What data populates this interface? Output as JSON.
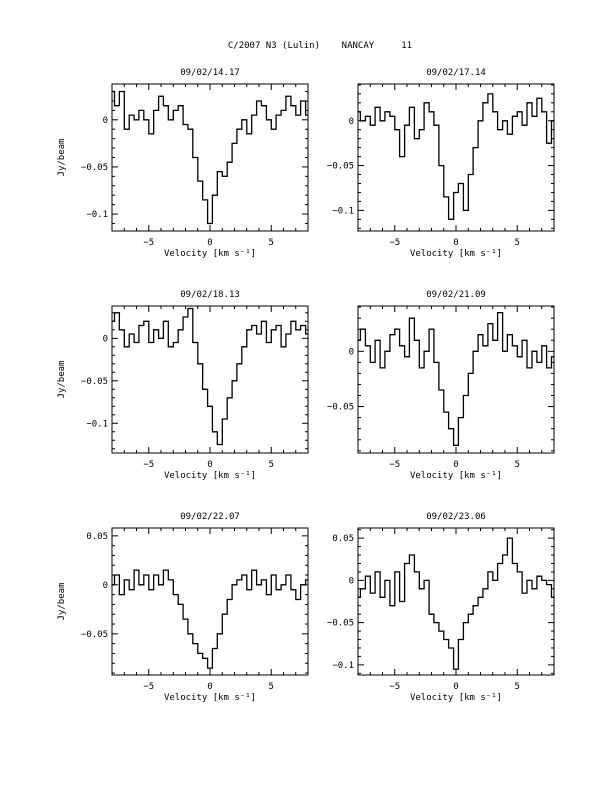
{
  "page_title": "C/2007 N3 (Lulin)    NANCAY     11",
  "chart_data": [
    {
      "type": "line",
      "title": "09/02/14.17",
      "xlabel": "Velocity [km s⁻¹]",
      "ylabel": "Jy/beam",
      "xlim": [
        -8,
        8
      ],
      "ylim": [
        -0.118,
        0.038
      ],
      "xticks": [
        -5,
        0,
        5
      ],
      "yticks": [
        0,
        -0.05,
        -0.1
      ],
      "ytick_labels": [
        "0",
        "−0.05",
        "−0.1"
      ],
      "x": [
        -8.0,
        -7.6,
        -7.2,
        -6.8,
        -6.4,
        -6.0,
        -5.6,
        -5.2,
        -4.8,
        -4.4,
        -4.0,
        -3.6,
        -3.2,
        -2.8,
        -2.4,
        -2.0,
        -1.6,
        -1.2,
        -0.8,
        -0.4,
        0.0,
        0.4,
        0.8,
        1.2,
        1.6,
        2.0,
        2.4,
        2.8,
        3.2,
        3.6,
        4.0,
        4.4,
        4.8,
        5.2,
        5.6,
        6.0,
        6.4,
        6.8,
        7.2,
        7.6,
        8.0
      ],
      "values": [
        0.03,
        0.015,
        0.03,
        -0.01,
        0.005,
        0.0,
        0.01,
        0.0,
        -0.015,
        0.01,
        0.025,
        0.015,
        0.0,
        0.01,
        0.015,
        -0.005,
        -0.01,
        -0.04,
        -0.065,
        -0.085,
        -0.11,
        -0.08,
        -0.055,
        -0.06,
        -0.045,
        -0.025,
        -0.01,
        0.0,
        -0.015,
        0.005,
        0.02,
        0.015,
        0.0,
        -0.01,
        0.005,
        0.01,
        0.025,
        0.015,
        0.005,
        0.02,
        0.005
      ]
    },
    {
      "type": "line",
      "title": "09/02/17.14",
      "xlabel": "Velocity [km s⁻¹]",
      "ylabel": "",
      "xlim": [
        -8,
        8
      ],
      "ylim": [
        -0.123,
        0.041
      ],
      "xticks": [
        -5,
        0,
        5
      ],
      "yticks": [
        0,
        -0.05,
        -0.1
      ],
      "ytick_labels": [
        "0",
        "−0.05",
        "−0.1"
      ],
      "x": [
        -8.0,
        -7.6,
        -7.2,
        -6.8,
        -6.4,
        -6.0,
        -5.6,
        -5.2,
        -4.8,
        -4.4,
        -4.0,
        -3.6,
        -3.2,
        -2.8,
        -2.4,
        -2.0,
        -1.6,
        -1.2,
        -0.8,
        -0.4,
        0.0,
        0.4,
        0.8,
        1.2,
        1.6,
        2.0,
        2.4,
        2.8,
        3.2,
        3.6,
        4.0,
        4.4,
        4.8,
        5.2,
        5.6,
        6.0,
        6.4,
        6.8,
        7.2,
        7.6,
        8.0
      ],
      "values": [
        0.01,
        0.0,
        0.005,
        -0.005,
        0.015,
        0.0,
        0.01,
        0.005,
        -0.01,
        -0.04,
        -0.005,
        0.015,
        -0.02,
        -0.01,
        0.02,
        0.01,
        -0.005,
        -0.05,
        -0.085,
        -0.11,
        -0.08,
        -0.07,
        -0.1,
        -0.06,
        -0.03,
        0.0,
        0.02,
        0.03,
        0.01,
        -0.01,
        0.0,
        -0.015,
        0.005,
        0.01,
        -0.005,
        0.02,
        0.005,
        0.025,
        0.01,
        -0.025,
        0.0
      ]
    },
    {
      "type": "line",
      "title": "09/02/18.13",
      "xlabel": "Velocity [km s⁻¹]",
      "ylabel": "Jy/beam",
      "xlim": [
        -8,
        8
      ],
      "ylim": [
        -0.135,
        0.038
      ],
      "xticks": [
        -5,
        0,
        5
      ],
      "yticks": [
        0,
        -0.05,
        -0.1
      ],
      "ytick_labels": [
        "0",
        "−0.05",
        "−0.1"
      ],
      "x": [
        -8.0,
        -7.6,
        -7.2,
        -6.8,
        -6.4,
        -6.0,
        -5.6,
        -5.2,
        -4.8,
        -4.4,
        -4.0,
        -3.6,
        -3.2,
        -2.8,
        -2.4,
        -2.0,
        -1.6,
        -1.2,
        -0.8,
        -0.4,
        0.0,
        0.4,
        0.8,
        1.2,
        1.6,
        2.0,
        2.4,
        2.8,
        3.2,
        3.6,
        4.0,
        4.4,
        4.8,
        5.2,
        5.6,
        6.0,
        6.4,
        6.8,
        7.2,
        7.6,
        8.0
      ],
      "values": [
        0.02,
        0.03,
        0.01,
        -0.01,
        0.005,
        -0.005,
        0.015,
        0.02,
        -0.005,
        0.01,
        0.0,
        0.02,
        -0.01,
        -0.005,
        0.01,
        0.025,
        0.035,
        -0.005,
        -0.03,
        -0.06,
        -0.08,
        -0.11,
        -0.125,
        -0.095,
        -0.07,
        -0.05,
        -0.03,
        -0.01,
        0.01,
        0.015,
        0.005,
        0.02,
        -0.005,
        0.01,
        0.015,
        -0.01,
        0.005,
        0.02,
        0.01,
        0.015,
        0.005
      ]
    },
    {
      "type": "line",
      "title": "09/02/21.09",
      "xlabel": "Velocity [km s⁻¹]",
      "ylabel": "",
      "xlim": [
        -8,
        8
      ],
      "ylim": [
        -0.092,
        0.041
      ],
      "xticks": [
        -5,
        0,
        5
      ],
      "yticks": [
        0,
        -0.05
      ],
      "ytick_labels": [
        "0",
        "−0.05"
      ],
      "x": [
        -8.0,
        -7.6,
        -7.2,
        -6.8,
        -6.4,
        -6.0,
        -5.6,
        -5.2,
        -4.8,
        -4.4,
        -4.0,
        -3.6,
        -3.2,
        -2.8,
        -2.4,
        -2.0,
        -1.6,
        -1.2,
        -0.8,
        -0.4,
        0.0,
        0.4,
        0.8,
        1.2,
        1.6,
        2.0,
        2.4,
        2.8,
        3.2,
        3.6,
        4.0,
        4.4,
        4.8,
        5.2,
        5.6,
        6.0,
        6.4,
        6.8,
        7.2,
        7.6,
        8.0
      ],
      "values": [
        0.01,
        0.02,
        0.005,
        -0.01,
        0.01,
        -0.015,
        0.0,
        0.015,
        0.02,
        0.005,
        -0.005,
        0.03,
        0.01,
        -0.015,
        0.0,
        0.02,
        -0.01,
        -0.035,
        -0.055,
        -0.07,
        -0.085,
        -0.06,
        -0.04,
        -0.02,
        0.0,
        0.015,
        0.005,
        0.025,
        0.01,
        0.035,
        0.0,
        0.015,
        0.005,
        -0.005,
        0.01,
        -0.015,
        0.0,
        -0.01,
        0.005,
        -0.015,
        -0.005
      ]
    },
    {
      "type": "line",
      "title": "09/02/22.07",
      "xlabel": "Velocity [km s⁻¹]",
      "ylabel": "Jy/beam",
      "xlim": [
        -8,
        8
      ],
      "ylim": [
        -0.092,
        0.058
      ],
      "xticks": [
        -5,
        0,
        5
      ],
      "yticks": [
        0.05,
        0,
        -0.05
      ],
      "ytick_labels": [
        "0.05",
        "0",
        "−0.05"
      ],
      "x": [
        -8.0,
        -7.6,
        -7.2,
        -6.8,
        -6.4,
        -6.0,
        -5.6,
        -5.2,
        -4.8,
        -4.4,
        -4.0,
        -3.6,
        -3.2,
        -2.8,
        -2.4,
        -2.0,
        -1.6,
        -1.2,
        -0.8,
        -0.4,
        0.0,
        0.4,
        0.8,
        1.2,
        1.6,
        2.0,
        2.4,
        2.8,
        3.2,
        3.6,
        4.0,
        4.4,
        4.8,
        5.2,
        5.6,
        6.0,
        6.4,
        6.8,
        7.2,
        7.6,
        8.0
      ],
      "values": [
        0.0,
        0.01,
        -0.01,
        0.005,
        -0.005,
        0.015,
        0.0,
        0.01,
        -0.005,
        0.01,
        0.0,
        0.015,
        0.005,
        -0.01,
        -0.02,
        -0.035,
        -0.05,
        -0.06,
        -0.07,
        -0.075,
        -0.085,
        -0.065,
        -0.05,
        -0.03,
        -0.015,
        0.0,
        0.005,
        0.01,
        -0.005,
        0.015,
        0.0,
        0.005,
        -0.01,
        0.01,
        -0.005,
        0.0,
        0.01,
        -0.005,
        -0.015,
        0.0,
        0.005
      ]
    },
    {
      "type": "line",
      "title": "09/02/23.06",
      "xlabel": "Velocity [km s⁻¹]",
      "ylabel": "",
      "xlim": [
        -8,
        8
      ],
      "ylim": [
        -0.112,
        0.062
      ],
      "xticks": [
        -5,
        0,
        5
      ],
      "yticks": [
        0.05,
        0,
        -0.05,
        -0.1
      ],
      "ytick_labels": [
        "0.05",
        "0",
        "−0.05",
        "−0.1"
      ],
      "x": [
        -8.0,
        -7.6,
        -7.2,
        -6.8,
        -6.4,
        -6.0,
        -5.6,
        -5.2,
        -4.8,
        -4.4,
        -4.0,
        -3.6,
        -3.2,
        -2.8,
        -2.4,
        -2.0,
        -1.6,
        -1.2,
        -0.8,
        -0.4,
        0.0,
        0.4,
        0.8,
        1.2,
        1.6,
        2.0,
        2.4,
        2.8,
        3.2,
        3.6,
        4.0,
        4.4,
        4.8,
        5.2,
        5.6,
        6.0,
        6.4,
        6.8,
        7.2,
        7.6,
        8.0
      ],
      "values": [
        -0.02,
        -0.01,
        0.005,
        -0.015,
        0.01,
        -0.02,
        0.0,
        -0.03,
        0.01,
        -0.025,
        0.02,
        0.03,
        0.01,
        -0.01,
        0.0,
        -0.04,
        -0.05,
        -0.06,
        -0.07,
        -0.08,
        -0.105,
        -0.07,
        -0.05,
        -0.04,
        -0.03,
        -0.02,
        -0.01,
        0.01,
        0.0,
        0.02,
        0.03,
        0.05,
        0.02,
        0.01,
        -0.015,
        0.0,
        -0.01,
        0.005,
        0.0,
        -0.005,
        -0.02
      ]
    }
  ]
}
